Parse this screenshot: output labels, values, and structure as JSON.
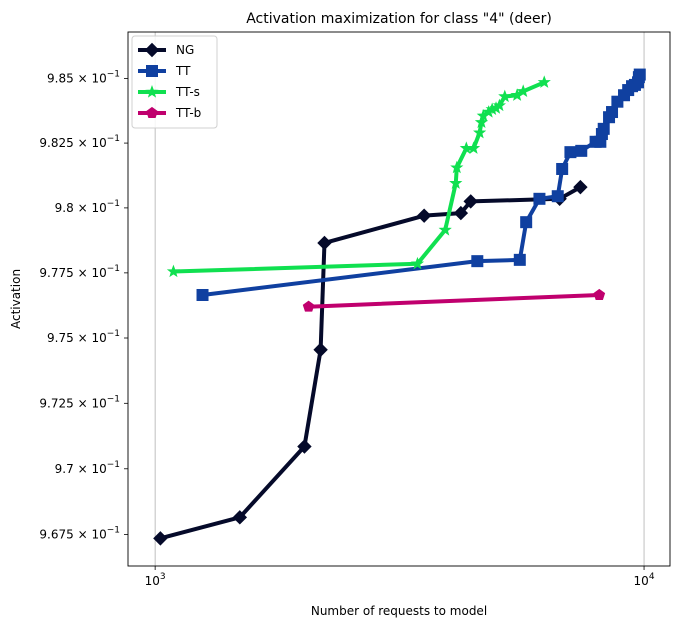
{
  "chart_data": {
    "type": "line",
    "title": "Activation maximization for class \"4\" (deer)",
    "xlabel": "Number of requests to model",
    "ylabel": "Activation",
    "xscale": "log",
    "yscale": "log",
    "xlim": [
      880,
      11300
    ],
    "ylim": [
      0.9663,
      0.9868
    ],
    "grid": "vertical lines at major x ticks",
    "legend_position": "top-left",
    "x_ticks": [
      {
        "value": 1000,
        "base": "10",
        "exp": "3"
      },
      {
        "value": 10000,
        "base": "10",
        "exp": "4"
      }
    ],
    "y_ticks": [
      {
        "value": 0.9675,
        "mantissa": "9.675",
        "times": "×",
        "base": "10",
        "exp": "−1"
      },
      {
        "value": 0.97,
        "mantissa": "9.7",
        "times": "×",
        "base": "10",
        "exp": "−1"
      },
      {
        "value": 0.9725,
        "mantissa": "9.725",
        "times": "×",
        "base": "10",
        "exp": "−1"
      },
      {
        "value": 0.975,
        "mantissa": "9.75",
        "times": "×",
        "base": "10",
        "exp": "−1"
      },
      {
        "value": 0.9775,
        "mantissa": "9.775",
        "times": "×",
        "base": "10",
        "exp": "−1"
      },
      {
        "value": 0.98,
        "mantissa": "9.8",
        "times": "×",
        "base": "10",
        "exp": "−1"
      },
      {
        "value": 0.9825,
        "mantissa": "9.825",
        "times": "×",
        "base": "10",
        "exp": "−1"
      },
      {
        "value": 0.985,
        "mantissa": "9.85",
        "times": "×",
        "base": "10",
        "exp": "−1"
      }
    ],
    "series": [
      {
        "name": "NG",
        "color": "#050a2a",
        "marker": "diamond",
        "x": [
          1025,
          1490,
          2020,
          2180,
          2220,
          3550,
          4220,
          4420,
          6720,
          7410
        ],
        "y": [
          0.96735,
          0.96815,
          0.97085,
          0.97455,
          0.97865,
          0.9797,
          0.9798,
          0.98025,
          0.98035,
          0.9808
        ]
      },
      {
        "name": "TT",
        "color": "#1040a0",
        "marker": "square",
        "x": [
          1250,
          4560,
          5570,
          5740,
          6110,
          6660,
          6800,
          7070,
          7440,
          7960,
          8140,
          8200,
          8270,
          8480,
          8600,
          8820,
          9100,
          9280,
          9450,
          9580,
          9720,
          9760,
          9800
        ],
        "y": [
          0.97665,
          0.97795,
          0.978,
          0.97945,
          0.98035,
          0.98045,
          0.9815,
          0.98215,
          0.9822,
          0.98255,
          0.98255,
          0.98285,
          0.98305,
          0.9835,
          0.9837,
          0.9841,
          0.98435,
          0.98455,
          0.9847,
          0.98475,
          0.98485,
          0.98505,
          0.98515
        ]
      },
      {
        "name": "TT-s",
        "color": "#10e050",
        "marker": "star",
        "x": [
          1090,
          3440,
          3920,
          4120,
          4140,
          4330,
          4480,
          4610,
          4650,
          4690,
          4810,
          4890,
          4980,
          5060,
          5190,
          5500,
          5660,
          6250
        ],
        "y": [
          0.97755,
          0.97785,
          0.97915,
          0.98095,
          0.98155,
          0.9823,
          0.9823,
          0.9829,
          0.9833,
          0.98355,
          0.9837,
          0.9838,
          0.98385,
          0.98395,
          0.9843,
          0.98435,
          0.9845,
          0.98485
        ]
      },
      {
        "name": "TT-b",
        "color": "#c0006e",
        "marker": "pentagon",
        "x": [
          2060,
          8100
        ],
        "y": [
          0.9762,
          0.97665
        ]
      }
    ]
  }
}
